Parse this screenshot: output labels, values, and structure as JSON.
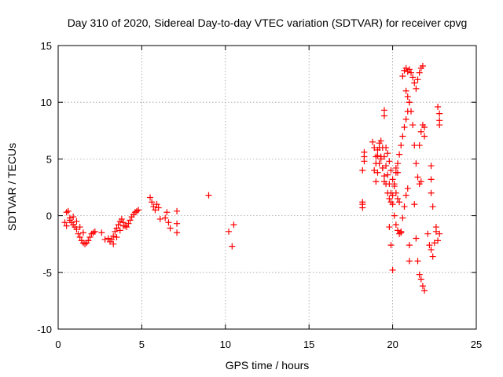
{
  "chart_data": {
    "type": "scatter",
    "title": "Day 310 of 2020, Sidereal Day-to-day VTEC variation (SDTVAR) for receiver cpvg",
    "xlabel": "GPS time / hours",
    "ylabel": "SDTVAR / TECUs",
    "xlim": [
      0,
      25
    ],
    "ylim": [
      -10,
      15
    ],
    "xticks": [
      0,
      5,
      10,
      15,
      20,
      25
    ],
    "yticks": [
      -10,
      -5,
      0,
      5,
      10,
      15
    ],
    "grid": true,
    "marker": "+",
    "color": "#ff0000",
    "series": [
      {
        "name": "SDTVAR",
        "segments": [
          {
            "x": [
              0.4,
              0.5,
              0.6,
              0.7,
              0.8,
              0.9,
              1.0,
              1.1,
              1.2,
              1.3,
              1.4,
              1.5,
              1.6,
              1.7,
              1.8,
              1.9,
              2.0,
              2.1,
              2.2
            ],
            "y": [
              -0.6,
              0.3,
              0.4,
              -0.2,
              -0.6,
              -0.8,
              -1.0,
              -1.2,
              -1.6,
              -1.9,
              -2.2,
              -2.4,
              -2.5,
              -2.4,
              -2.2,
              -1.9,
              -1.6,
              -1.5,
              -1.4
            ]
          },
          {
            "x": [
              0.5,
              0.7,
              0.9,
              1.1,
              1.3,
              1.5
            ],
            "y": [
              -0.9,
              -0.4,
              -0.1,
              -0.5,
              -1.0,
              -1.5
            ]
          },
          {
            "x": [
              2.6,
              2.8
            ],
            "y": [
              -1.5,
              -2.1
            ]
          },
          {
            "x": [
              3.0,
              3.1,
              3.2,
              3.3,
              3.4,
              3.5,
              3.6,
              3.7,
              3.8,
              3.9,
              4.0,
              4.1,
              4.2,
              4.3,
              4.4,
              4.5,
              4.6,
              4.7,
              4.8
            ],
            "y": [
              -2.0,
              -2.3,
              -2.1,
              -1.8,
              -1.4,
              -1.1,
              -0.8,
              -0.5,
              -0.3,
              -0.6,
              -0.9,
              -1.0,
              -0.7,
              -0.4,
              -0.1,
              0.1,
              0.3,
              0.4,
              0.5
            ]
          },
          {
            "x": [
              3.3,
              3.5,
              3.7,
              3.9
            ],
            "y": [
              -2.5,
              -1.9,
              -1.3,
              -0.9
            ]
          },
          {
            "x": [
              5.5,
              5.6,
              5.7,
              5.8,
              5.9,
              6.0,
              6.1
            ],
            "y": [
              1.6,
              1.2,
              0.8,
              0.5,
              1.0,
              0.7,
              -0.3
            ]
          },
          {
            "x": [
              6.4,
              6.5,
              6.6,
              6.7
            ],
            "y": [
              -0.2,
              0.3,
              -0.6,
              -1.1
            ]
          },
          {
            "x": [
              7.1,
              7.1,
              7.1
            ],
            "y": [
              0.4,
              -0.7,
              -1.5
            ]
          },
          {
            "x": [
              9.0
            ],
            "y": [
              1.8
            ]
          },
          {
            "x": [
              10.2,
              10.4,
              10.5
            ],
            "y": [
              -1.4,
              -2.7,
              -0.8
            ]
          },
          {
            "x": [
              18.2,
              18.2,
              18.2,
              18.3,
              18.3,
              18.3,
              18.2
            ],
            "y": [
              0.7,
              1.2,
              4.0,
              4.8,
              5.6,
              5.2,
              1.0
            ]
          },
          {
            "x": [
              18.8,
              18.9,
              19.0,
              19.1,
              19.2,
              19.3,
              19.4,
              19.5,
              19.6,
              19.7,
              19.8,
              19.9,
              20.0,
              20.1,
              20.2,
              20.3,
              20.4,
              20.5,
              20.6,
              20.7,
              20.8,
              20.9,
              21.0
            ],
            "y": [
              6.5,
              6.0,
              5.2,
              5.8,
              6.4,
              5.0,
              4.2,
              3.5,
              2.8,
              2.0,
              1.5,
              1.2,
              1.8,
              2.8,
              3.8,
              4.6,
              5.4,
              6.2,
              7.0,
              7.8,
              8.5,
              9.2,
              10.0
            ]
          },
          {
            "x": [
              18.9,
              19.0,
              19.1,
              19.2,
              19.3,
              19.4,
              19.5,
              19.6,
              19.7,
              19.8,
              19.9,
              20.0,
              20.1,
              20.2,
              20.3,
              20.4,
              20.5
            ],
            "y": [
              4.0,
              4.6,
              5.3,
              6.0,
              6.6,
              6.0,
              5.2,
              4.4,
              3.6,
              2.8,
              2.0,
              1.0,
              0.0,
              -0.8,
              -1.3,
              -1.6,
              -1.5
            ]
          },
          {
            "x": [
              19.0,
              19.1,
              19.2,
              19.3,
              19.4,
              19.5
            ],
            "y": [
              3.0,
              3.8,
              4.6,
              5.2,
              4.2,
              3.0
            ]
          },
          {
            "x": [
              19.5,
              19.5
            ],
            "y": [
              9.3,
              8.8
            ]
          },
          {
            "x": [
              19.6,
              19.7,
              19.8,
              19.9,
              20.0,
              20.1,
              20.2,
              20.3,
              20.4
            ],
            "y": [
              6.0,
              5.5,
              4.8,
              4.0,
              3.2,
              2.6,
              2.0,
              1.5,
              1.2
            ]
          },
          {
            "x": [
              19.8,
              19.9,
              20.0
            ],
            "y": [
              -1.0,
              -2.6,
              -4.8
            ]
          },
          {
            "x": [
              20.2,
              20.3
            ],
            "y": [
              4.2,
              3.8
            ]
          },
          {
            "x": [
              20.5,
              20.6,
              20.7,
              20.8,
              20.9
            ],
            "y": [
              -1.4,
              -0.2,
              0.8,
              1.8,
              2.4
            ]
          },
          {
            "x": [
              20.6,
              20.7,
              20.8,
              20.9,
              21.0,
              21.1,
              21.2,
              21.3,
              21.4,
              21.5,
              21.6,
              21.7,
              21.8
            ],
            "y": [
              12.3,
              12.8,
              13.0,
              12.7,
              12.9,
              12.6,
              12.2,
              11.7,
              11.2,
              12.0,
              12.6,
              13.0,
              13.2
            ]
          },
          {
            "x": [
              20.8,
              20.9,
              21.0,
              21.1,
              21.2,
              21.3,
              21.4,
              21.5,
              21.6,
              21.7
            ],
            "y": [
              11.0,
              10.5,
              10.0,
              9.2,
              8.0,
              6.2,
              4.6,
              3.4,
              2.8,
              3.0
            ]
          },
          {
            "x": [
              21.0,
              21.0
            ],
            "y": [
              -2.6,
              -4.0
            ]
          },
          {
            "x": [
              21.3,
              21.4,
              21.5,
              21.6,
              21.7,
              21.8,
              21.9
            ],
            "y": [
              1.0,
              -2.0,
              -4.0,
              -5.2,
              -5.6,
              -6.2,
              -6.6
            ]
          },
          {
            "x": [
              21.6,
              21.7,
              21.8,
              21.9,
              21.9
            ],
            "y": [
              6.2,
              7.4,
              8.0,
              7.8,
              7.0
            ]
          },
          {
            "x": [
              22.1,
              22.2,
              22.3,
              22.4,
              22.5,
              22.6
            ],
            "y": [
              -1.6,
              -2.6,
              -3.0,
              -3.6,
              -2.4,
              -1.0
            ]
          },
          {
            "x": [
              22.3,
              22.3,
              22.3,
              22.4
            ],
            "y": [
              4.4,
              3.2,
              2.0,
              0.8
            ]
          },
          {
            "x": [
              22.7,
              22.8,
              22.8,
              22.8
            ],
            "y": [
              9.6,
              9.0,
              8.4,
              8.0
            ]
          },
          {
            "x": [
              22.6,
              22.7,
              22.8
            ],
            "y": [
              -1.4,
              -2.2,
              -1.6
            ]
          }
        ]
      }
    ]
  }
}
